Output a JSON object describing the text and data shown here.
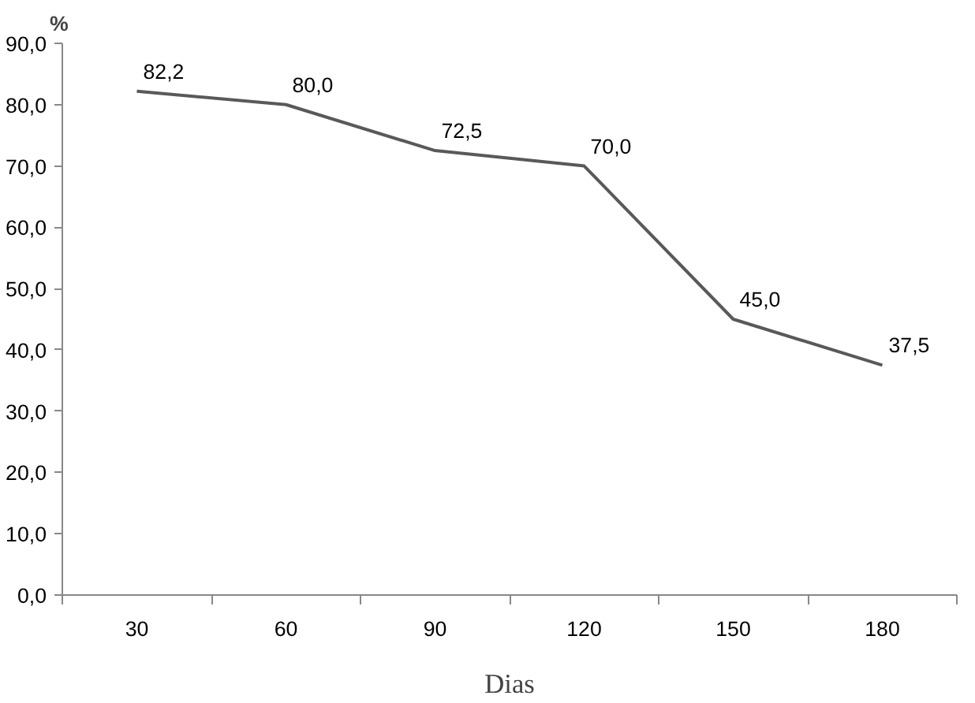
{
  "chart_data": {
    "type": "line",
    "xlabel": "Dias",
    "ylabel": "%",
    "categories": [
      "30",
      "60",
      "90",
      "120",
      "150",
      "180"
    ],
    "series": [
      {
        "color": "#595959",
        "values": [
          82.2,
          80.0,
          72.5,
          70.0,
          45.0,
          37.5
        ],
        "value_labels": [
          "82,2",
          "80,0",
          "72,5",
          "70,0",
          "45,0",
          "37,5"
        ]
      }
    ],
    "ylim": [
      0,
      90
    ],
    "yticks": [
      {
        "value": 0,
        "label": "0,0"
      },
      {
        "value": 10,
        "label": "10,0"
      },
      {
        "value": 20,
        "label": "20,0"
      },
      {
        "value": 30,
        "label": "30,0"
      },
      {
        "value": 40,
        "label": "40,0"
      },
      {
        "value": 50,
        "label": "50,0"
      },
      {
        "value": 60,
        "label": "60,0"
      },
      {
        "value": 70,
        "label": "70,0"
      },
      {
        "value": 80,
        "label": "80,0"
      },
      {
        "value": 90,
        "label": "90,0"
      }
    ],
    "grid": false,
    "marker": "none",
    "line_style": "solid"
  }
}
